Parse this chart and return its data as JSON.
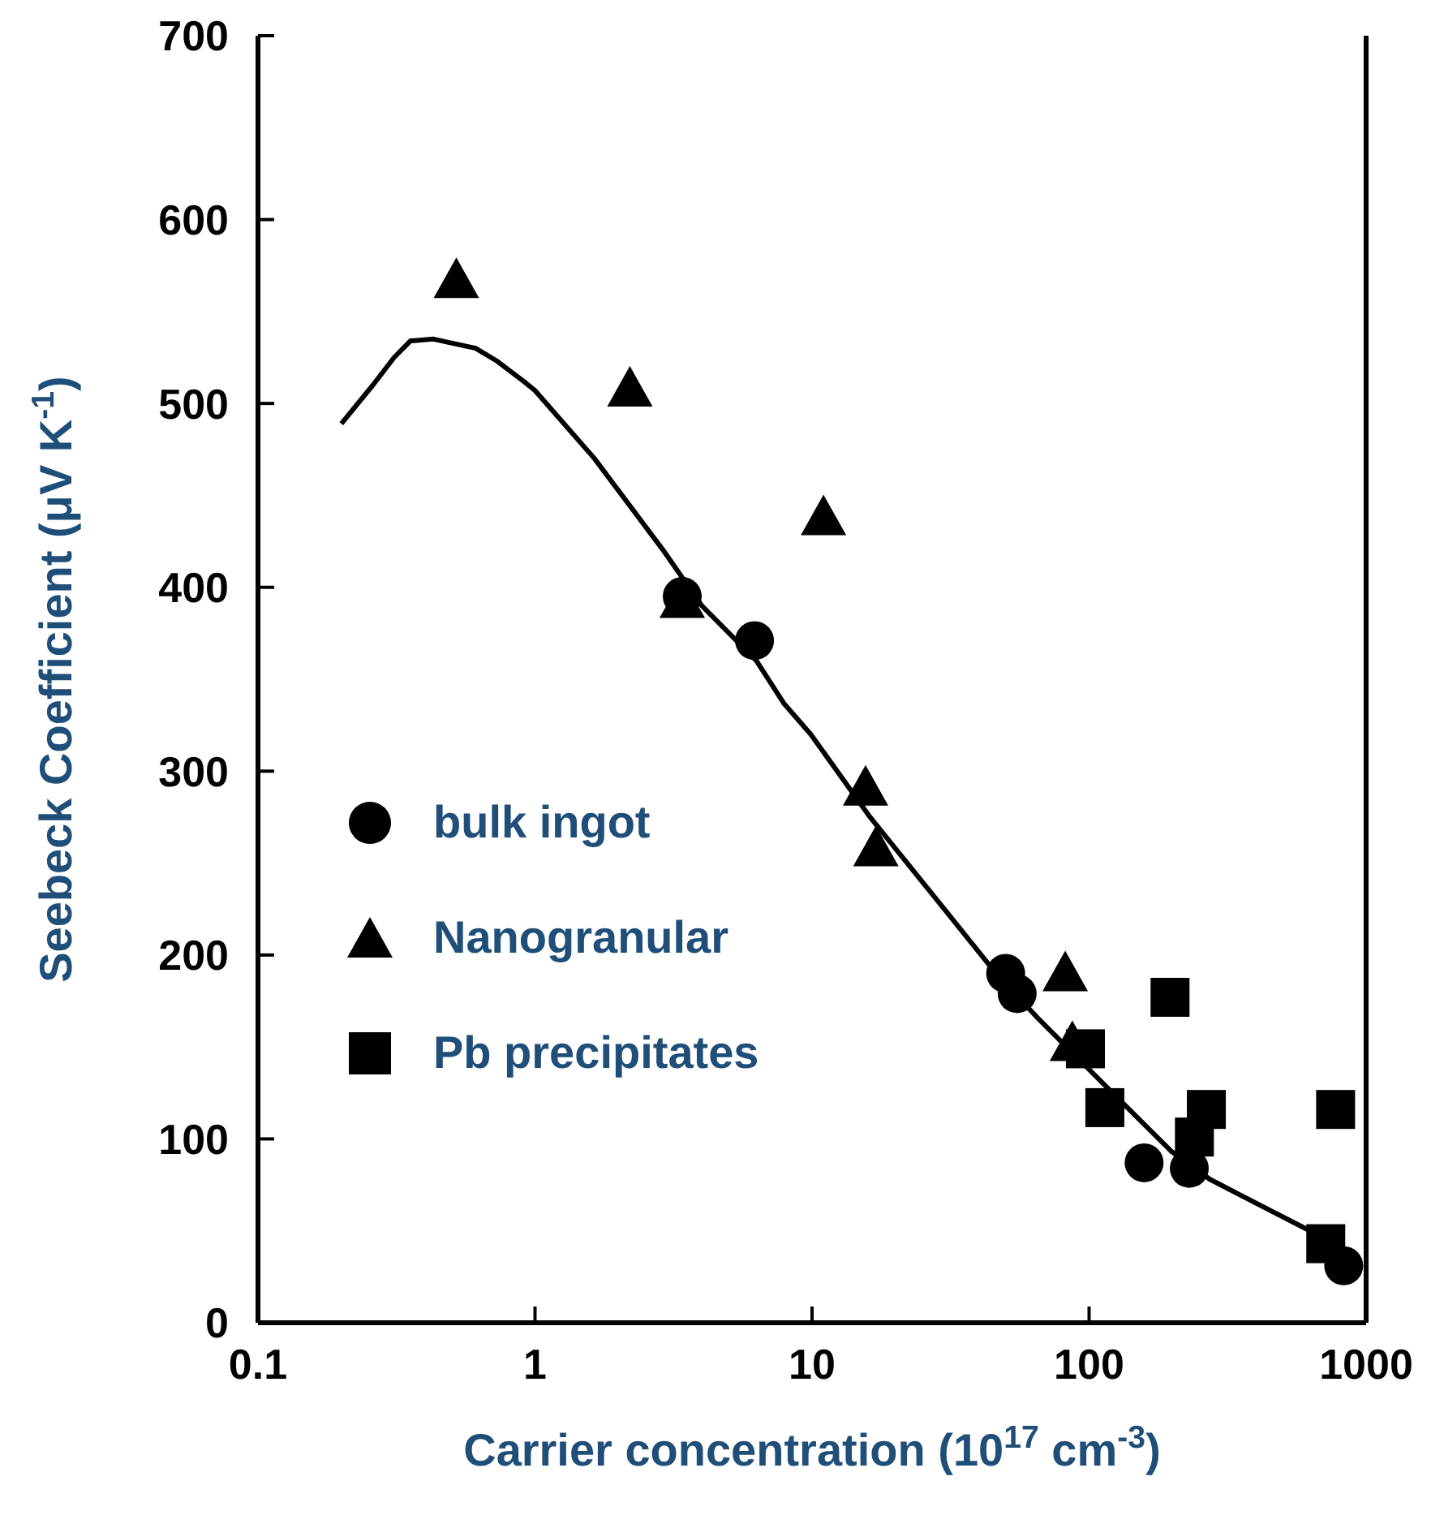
{
  "chart_data": {
    "type": "scatter",
    "xlabel": "Carrier concentration (10$^{17}$ cm$^{-3}$)",
    "ylabel": "Seebeck Coefficient (μV K$^{-1}$)",
    "log": "x",
    "xlim": [
      0.1,
      1000
    ],
    "xticks": [
      0.1,
      1,
      10,
      100,
      1000
    ],
    "ylim": [
      0,
      700
    ],
    "yticks": [
      0,
      100,
      200,
      300,
      400,
      500,
      600,
      700
    ],
    "legend": "left",
    "series": [
      {
        "name": "bulk ingot",
        "color": "#000000",
        "marker": "circle",
        "x": [
          3.4,
          6.2,
          50,
          55,
          158,
          230,
          830
        ],
        "values": [
          395,
          371,
          190,
          179,
          87,
          84,
          31
        ]
      },
      {
        "name": "Nanogranular",
        "color": "#000000",
        "marker": "triangle",
        "x": [
          0.52,
          2.2,
          11,
          3.4,
          15.6,
          17,
          82,
          87
        ],
        "values": [
          567,
          508,
          438,
          393,
          291,
          258,
          190,
          152
        ]
      },
      {
        "name": "Pb precipitates",
        "color": "#000000",
        "marker": "square",
        "x": [
          97,
          114,
          196,
          240,
          265,
          776,
          715
        ],
        "values": [
          149,
          117,
          177,
          101,
          116,
          116,
          43
        ]
      },
      {
        "type": "line",
        "color": "#000000",
        "marker": "none",
        "x": [
          0.2,
          0.26,
          0.31,
          0.355,
          0.43,
          0.61,
          0.73,
          0.91,
          1,
          1.64,
          2.94,
          4,
          6.3,
          7.9,
          9.9,
          16.2,
          30,
          45,
          65,
          116,
          199,
          273,
          706,
          870
        ],
        "values": [
          489,
          510,
          525,
          534,
          535,
          530,
          523,
          512,
          507,
          470,
          419,
          390,
          360,
          337,
          320,
          275,
          225,
          192,
          166,
          128,
          93,
          78,
          46,
          37
        ]
      }
    ]
  }
}
